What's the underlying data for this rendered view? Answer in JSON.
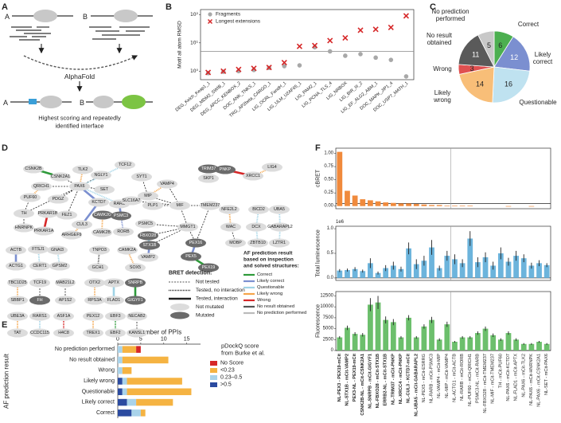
{
  "panel_labels": [
    "A",
    "B",
    "C",
    "D",
    "E",
    "F"
  ],
  "schematic": {
    "protein_a": "A",
    "protein_b": "B",
    "tool": "AlphaFold",
    "result_a": "A",
    "result_b": "B",
    "caption": [
      "Highest scoring and repeatedly",
      "identified interface"
    ]
  },
  "chart_data": [
    {
      "type": "scatter",
      "ylabel": "Motif all atom RMSD",
      "categories": [
        "DEG_Kelch_Keap1_1",
        "DEG_MDM2_SWIB_1",
        "DEG_APCC_KENBOX_2",
        "DOC_ANK_TNKS_1",
        "TRG_AP2beta_CARGO_1",
        "LIG_OCRL_FandH_1",
        "LIG_ULM_U2AF65_1",
        "LIG_PAM2_1",
        "LIG_PCNA_TLS_4",
        "LIG_NRBOX",
        "LIG_BIR_III_2",
        "LIG_EF_ALG2_ABM_1",
        "DOC_MAPK_JIP1_4",
        "DOC_USP7_MATH_1"
      ],
      "series": [
        {
          "name": "Fragments",
          "color": "#a8a8a8",
          "marker": "circle",
          "values": [
            0.85,
            0.95,
            1.0,
            1.1,
            1.3,
            1.5,
            1.6,
            7,
            5,
            3.5,
            4,
            3,
            2.5,
            0.65
          ]
        },
        {
          "name": "Longest extensions",
          "color": "#d62728",
          "marker": "x",
          "values": [
            0.9,
            1.0,
            1.15,
            1.25,
            1.35,
            2.0,
            7.5,
            8,
            12,
            15,
            28,
            30,
            35,
            90
          ]
        }
      ],
      "ylim": [
        0.5,
        150
      ],
      "log_scale": true,
      "yticks": [
        {
          "value": 1,
          "label": "10⁰"
        },
        {
          "value": 10,
          "label": "10¹"
        },
        {
          "value": 100,
          "label": "10²"
        }
      ],
      "reference_line": 5,
      "legend": "upper left"
    },
    {
      "type": "pie",
      "categories": [
        "Correct",
        "Likely correct",
        "Questionable",
        "Likely wrong",
        "Wrong",
        "No result obtained",
        "No prediction performed"
      ],
      "values": [
        6,
        12,
        16,
        14,
        3,
        11,
        5
      ],
      "colors": [
        "#4caf50",
        "#7b8fd0",
        "#bfe2f0",
        "#f8be78",
        "#e05050",
        "#5a5a5a",
        "#c8c8c8"
      ]
    },
    {
      "type": "bar",
      "orientation": "horizontal",
      "stacked": true,
      "xlabel": "Number of PPIs",
      "ylabel": "AF prediction result",
      "categories": [
        "No prediction performed",
        "No result obtained",
        "Wrong",
        "Likely wrong",
        "Questionable",
        "Likely correct",
        "Correct"
      ],
      "series": [
        {
          "name": ">0.5",
          "color": "#2b4ba0",
          "values": [
            0,
            0,
            0,
            1,
            1,
            2,
            3
          ]
        },
        {
          "name": "0.23–0.5",
          "color": "#a9d3ea",
          "values": [
            1,
            1,
            1,
            1,
            1,
            2,
            2
          ]
        },
        {
          "name": "<0.23",
          "color": "#f5b342",
          "values": [
            3,
            10,
            2,
            12,
            14,
            8,
            1
          ]
        },
        {
          "name": "No Score",
          "color": "#d62728",
          "values": [
            1,
            0,
            0,
            0,
            0,
            0,
            0
          ]
        }
      ],
      "xlim": [
        0,
        18
      ],
      "xticks": [
        0,
        5,
        10,
        15
      ],
      "legend_title": [
        "pDockQ score",
        "from Burke et al."
      ]
    },
    {
      "type": "bar",
      "ylabel": "cBRET",
      "color": "#f08a3c",
      "values": [
        1.03,
        0.29,
        0.2,
        0.13,
        0.11,
        0.09,
        0.07,
        0.06,
        0.05,
        0.05,
        0.04,
        0.03,
        0.02,
        0.02,
        0.01,
        0.01,
        0.01,
        0.01,
        0.0,
        0.0,
        0.0,
        0.0,
        -0.01,
        0.0,
        0.0,
        -0.01,
        0.0,
        0.0
      ],
      "ylim": [
        -0.05,
        1.1
      ],
      "yticks": [
        {
          "value": 0,
          "label": "0.00"
        },
        {
          "value": 0.25,
          "label": "0.25"
        },
        {
          "value": 0.5,
          "label": "0.50"
        },
        {
          "value": 0.75,
          "label": "0.75"
        },
        {
          "value": 1,
          "label": "1.00"
        }
      ],
      "reference_line": 0.05
    },
    {
      "type": "bar",
      "ylabel": "Total luminescence",
      "offset_label": "1e6",
      "color": "#6cb4dc",
      "values": [
        0.15,
        0.16,
        0.18,
        0.14,
        0.3,
        0.1,
        0.2,
        0.25,
        0.18,
        0.6,
        0.28,
        0.35,
        0.62,
        0.2,
        0.45,
        0.38,
        0.3,
        0.8,
        0.32,
        0.42,
        0.25,
        0.5,
        0.33,
        0.45,
        0.4,
        0.25,
        0.3,
        0.26
      ],
      "errors": [
        0.03,
        0.03,
        0.04,
        0.03,
        0.1,
        0.03,
        0.06,
        0.08,
        0.05,
        0.12,
        0.1,
        0.1,
        0.15,
        0.05,
        0.1,
        0.1,
        0.08,
        0.15,
        0.1,
        0.1,
        0.08,
        0.12,
        0.08,
        0.1,
        0.08,
        0.06,
        0.06,
        0.04
      ],
      "ylim": [
        -0.05,
        1.05
      ],
      "yticks": [
        {
          "value": 0,
          "label": "0.0"
        },
        {
          "value": 0.5,
          "label": "0.5"
        },
        {
          "value": 1,
          "label": "1.0"
        }
      ],
      "reference_line": 0
    },
    {
      "type": "bar",
      "ylabel": "Fluorescence",
      "color": "#6cbf6c",
      "categories": [
        "NL-PEX3 - PEX19-mCit",
        "NL-STX1B - mCit-VAMP2",
        "PEX3-NL - PEX19-mCit",
        "CSNK2B-NL - mCit-CSNK2A1",
        "NL-SNRPB - mCit-GIGYF1",
        "NL-FBXO28 - mCit-STX1B",
        "ERRB2-NL - mCit-STX1B",
        "NL-TRIM37 - mCit-PNKP",
        "NL-XRCC4 - mCit-PNKP",
        "NL-CUL3 - KCTD7-mCit",
        "NL-UBA5 - mCit-GABARAPL2",
        "NL-PEX5 - mCit-ESRRG",
        "NL-RARB - mCit-PSMC3",
        "NL-VAMP4 - mCit-MIP",
        "NL-MIP - mCit-VAMP4",
        "NL-ACTG1 - mCit-ACTB",
        "NL-RARB - mCit-RORB",
        "NL-PUF60 - mCit-QRICH1",
        "PSMC3-NL - mCit-RARB",
        "NL-FBXO28 - mCit-TMEM237",
        "NL-MIF - mCit-TMEM237",
        "TH - mCit-PUF60",
        "NL-PAX6 - mCit-KCTD7",
        "NL-FLAD1 - mCit-APTX",
        "NL-PAX6 - mCit-TLK2",
        "NL-PAX6 - mCit-HNRNPK",
        "NL-PAX6 - mCit-CSNK2A1",
        "NL-SET - mCit-PAX6"
      ],
      "values": [
        3000,
        5200,
        3800,
        3600,
        10500,
        11000,
        7000,
        6500,
        3000,
        7500,
        3000,
        5500,
        7000,
        2500,
        6000,
        2000,
        3000,
        3000,
        4000,
        5000,
        3500,
        2500,
        4000,
        2500,
        1500,
        1500,
        2000,
        1500
      ],
      "errors": [
        300,
        500,
        400,
        400,
        1500,
        1500,
        800,
        700,
        300,
        600,
        300,
        500,
        700,
        300,
        600,
        200,
        300,
        300,
        400,
        500,
        400,
        300,
        400,
        300,
        200,
        200,
        200,
        200
      ],
      "ylim": [
        0,
        13500
      ],
      "yticks": [
        0,
        2500,
        5000,
        7500,
        10000,
        12500
      ],
      "reference_line": 0
    }
  ],
  "network": {
    "nodes": [
      {
        "label": "CSNK2B",
        "mutated": false
      },
      {
        "label": "CSNK2A1",
        "mutated": false
      },
      {
        "label": "TLK2",
        "mutated": false
      },
      {
        "label": "NGLY1",
        "mutated": false
      },
      {
        "label": "TCF12",
        "mutated": false
      },
      {
        "label": "QRICH1",
        "mutated": false
      },
      {
        "label": "PAX6",
        "mutated": false
      },
      {
        "label": "SET",
        "mutated": false
      },
      {
        "label": "PUF60",
        "mutated": false
      },
      {
        "label": "PDGZ",
        "mutated": false
      },
      {
        "label": "KCTD7",
        "mutated": false
      },
      {
        "label": "TH",
        "mutated": false
      },
      {
        "label": "PRKAR1B",
        "mutated": false
      },
      {
        "label": "FEZ1",
        "mutated": false
      },
      {
        "label": "CUL3",
        "mutated": false
      },
      {
        "label": "RARB",
        "mutated": false
      },
      {
        "label": "CAMK2G",
        "mutated": true
      },
      {
        "label": "PSMC3",
        "mutated": true
      },
      {
        "label": "HNRNPK",
        "mutated": false
      },
      {
        "label": "PRKAR1A",
        "mutated": false
      },
      {
        "label": "ARHGEF9",
        "mutated": false
      },
      {
        "label": "CAMK2B",
        "mutated": false
      },
      {
        "label": "RORB",
        "mutated": false
      },
      {
        "label": "ACTB",
        "mutated": false
      },
      {
        "label": "FTSJ1",
        "mutated": false
      },
      {
        "label": "GNAI3",
        "mutated": false
      },
      {
        "label": "TNPO3",
        "mutated": false
      },
      {
        "label": "CAMK2A",
        "mutated": false
      },
      {
        "label": "ACTG1",
        "mutated": false
      },
      {
        "label": "CERT1",
        "mutated": false
      },
      {
        "label": "GPSM2",
        "mutated": false
      },
      {
        "label": "GCH1",
        "mutated": false
      },
      {
        "label": "SOX5",
        "mutated": false
      },
      {
        "label": "TBC1D25",
        "mutated": false
      },
      {
        "label": "TCF19",
        "mutated": false
      },
      {
        "label": "MAB21L2",
        "mutated": false
      },
      {
        "label": "OTX2",
        "mutated": false
      },
      {
        "label": "APTX",
        "mutated": false
      },
      {
        "label": "SNRPB",
        "mutated": true
      },
      {
        "label": "SBBP1",
        "mutated": false
      },
      {
        "label": "FH",
        "mutated": true
      },
      {
        "label": "AP1S2",
        "mutated": false
      },
      {
        "label": "RPS3A",
        "mutated": false
      },
      {
        "label": "FLAD1",
        "mutated": false
      },
      {
        "label": "GIGYF1",
        "mutated": true
      },
      {
        "label": "UBE3A",
        "mutated": false
      },
      {
        "label": "RARS1",
        "mutated": false
      },
      {
        "label": "ASF1A",
        "mutated": false
      },
      {
        "label": "PEX12",
        "mutated": false
      },
      {
        "label": "EBF3",
        "mutated": false
      },
      {
        "label": "NECAB2",
        "mutated": false
      },
      {
        "label": "TAT",
        "mutated": false
      },
      {
        "label": "CCDC115",
        "mutated": false
      },
      {
        "label": "H4C8",
        "mutated": false
      },
      {
        "label": "TREX1",
        "mutated": false
      },
      {
        "label": "EBF2",
        "mutated": false
      },
      {
        "label": "KANSL1",
        "mutated": false
      },
      {
        "label": "SYT1",
        "mutated": false
      },
      {
        "label": "TRIM37",
        "mutated": true
      },
      {
        "label": "PNKP",
        "mutated": true
      },
      {
        "label": "XRCC1",
        "mutated": false
      },
      {
        "label": "LIG4",
        "mutated": false
      },
      {
        "label": "SKP1",
        "mutated": false
      },
      {
        "label": "MIP",
        "mutated": false
      },
      {
        "label": "VAMP4",
        "mutated": false
      },
      {
        "label": "SLC16A7",
        "mutated": false
      },
      {
        "label": "PLP1",
        "mutated": false
      },
      {
        "label": "MIF",
        "mutated": false
      },
      {
        "label": "TMEM237",
        "mutated": false
      },
      {
        "label": "NFE2L2",
        "mutated": false
      },
      {
        "label": "BICD2",
        "mutated": false
      },
      {
        "label": "UBA5",
        "mutated": false
      },
      {
        "label": "PSMC5",
        "mutated": false
      },
      {
        "label": "MMGT1",
        "mutated": false
      },
      {
        "label": "WAC",
        "mutated": false
      },
      {
        "label": "DCX",
        "mutated": false
      },
      {
        "label": "GABARAPL2",
        "mutated": false
      },
      {
        "label": "FBXO28",
        "mutated": true
      },
      {
        "label": "STX1B",
        "mutated": true
      },
      {
        "label": "PEX16",
        "mutated": true
      },
      {
        "label": "MOBP",
        "mutated": false
      },
      {
        "label": "ZBTB10",
        "mutated": false
      },
      {
        "label": "LZTR1",
        "mutated": false
      },
      {
        "label": "VAMP2",
        "mutated": false
      },
      {
        "label": "PEX5",
        "mutated": true
      },
      {
        "label": "PEX19",
        "mutated": true
      }
    ],
    "bret_legend": {
      "title": "BRET detection:",
      "items": [
        "Not tested",
        "Tested, no interaction",
        "Tested, interaction",
        "Not mutated",
        "Mutated"
      ]
    },
    "af_legend": {
      "title": [
        "AF prediction result",
        "based on inspection",
        "and solved structures:"
      ],
      "items": [
        {
          "label": "Correct",
          "color": "#2e9a3a"
        },
        {
          "label": "Likely correct",
          "color": "#7b8fd0"
        },
        {
          "label": "Questionable",
          "color": "#9fd3e6"
        },
        {
          "label": "Likely wrong",
          "color": "#f5a54a"
        },
        {
          "label": "Wrong",
          "color": "#d62728"
        },
        {
          "label": "No result obtained",
          "color": "#555555"
        },
        {
          "label": "No prediction performed",
          "color": "#bbbbbb"
        }
      ]
    }
  }
}
